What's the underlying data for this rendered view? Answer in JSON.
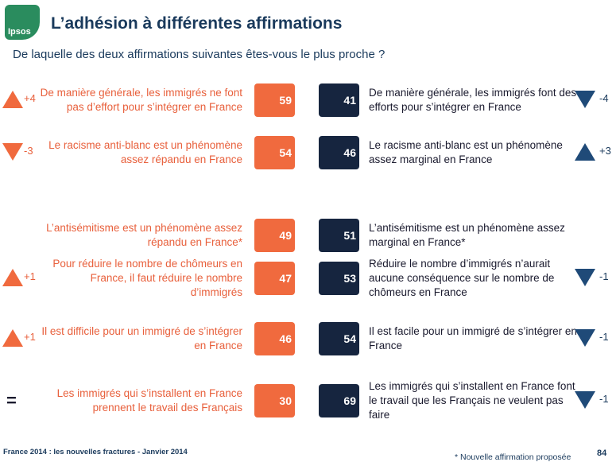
{
  "header": {
    "logo_text": "Ipsos",
    "title": "L’adhésion à différentes affirmations",
    "subtitle": "De laquelle des deux affirmations suivantes êtes-vous le plus proche ?"
  },
  "colors": {
    "left_accent": "#f06a3e",
    "right_accent": "#16253f",
    "title": "#1a3a5c"
  },
  "chart_data": {
    "type": "bar",
    "rows": [
      {
        "left_statement": "De manière générale, les immigrés ne font pas d’effort pour s’intégrer en France",
        "left_value": 59,
        "right_statement": "De manière générale, les immigrés font des efforts pour s’intégrer en France",
        "right_value": 41,
        "left_change": "+4",
        "left_direction": "up",
        "right_change": "-4",
        "right_direction": "down"
      },
      {
        "left_statement": "Le racisme anti-blanc est un phénomène assez répandu en France",
        "left_value": 54,
        "right_statement": "Le racisme anti-blanc est un phénomène assez marginal en France",
        "right_value": 46,
        "left_change": "-3",
        "left_direction": "down",
        "right_change": "+3",
        "right_direction": "up"
      },
      {
        "left_statement": "L’antisémitisme est un phénomène assez répandu en France*",
        "left_value": 49,
        "right_statement": "L’antisémitisme est un  phénomène assez marginal en France*",
        "right_value": 51,
        "left_change": "",
        "left_direction": "none",
        "right_change": "",
        "right_direction": "none"
      },
      {
        "left_statement": "Pour réduire le nombre de chômeurs en France, il faut réduire le nombre d’immigrés",
        "left_value": 47,
        "right_statement": "Réduire le nombre d’immigrés n’aurait aucune conséquence sur le nombre de chômeurs en France",
        "right_value": 53,
        "left_change": "+1",
        "left_direction": "up",
        "right_change": "-1",
        "right_direction": "down"
      },
      {
        "left_statement": "Il est difficile pour un immigré de s’intégrer en France",
        "left_value": 46,
        "right_statement": "Il est facile pour un immigré de s’intégrer en France",
        "right_value": 54,
        "left_change": "+1",
        "left_direction": "up",
        "right_change": "-1",
        "right_direction": "down"
      },
      {
        "left_statement": "Les immigrés qui s’installent en France prennent le travail des Français",
        "left_value": 30,
        "right_statement": "Les immigrés qui s’installent en France font le travail que les Français ne veulent pas faire",
        "right_value": 69,
        "left_change": "",
        "left_direction": "equal",
        "right_change": "-1",
        "right_direction": "down"
      }
    ]
  },
  "footer": {
    "source": "France 2014 : les nouvelles fractures - Janvier 2014",
    "note": "* Nouvelle affirmation proposée",
    "page": "84"
  }
}
